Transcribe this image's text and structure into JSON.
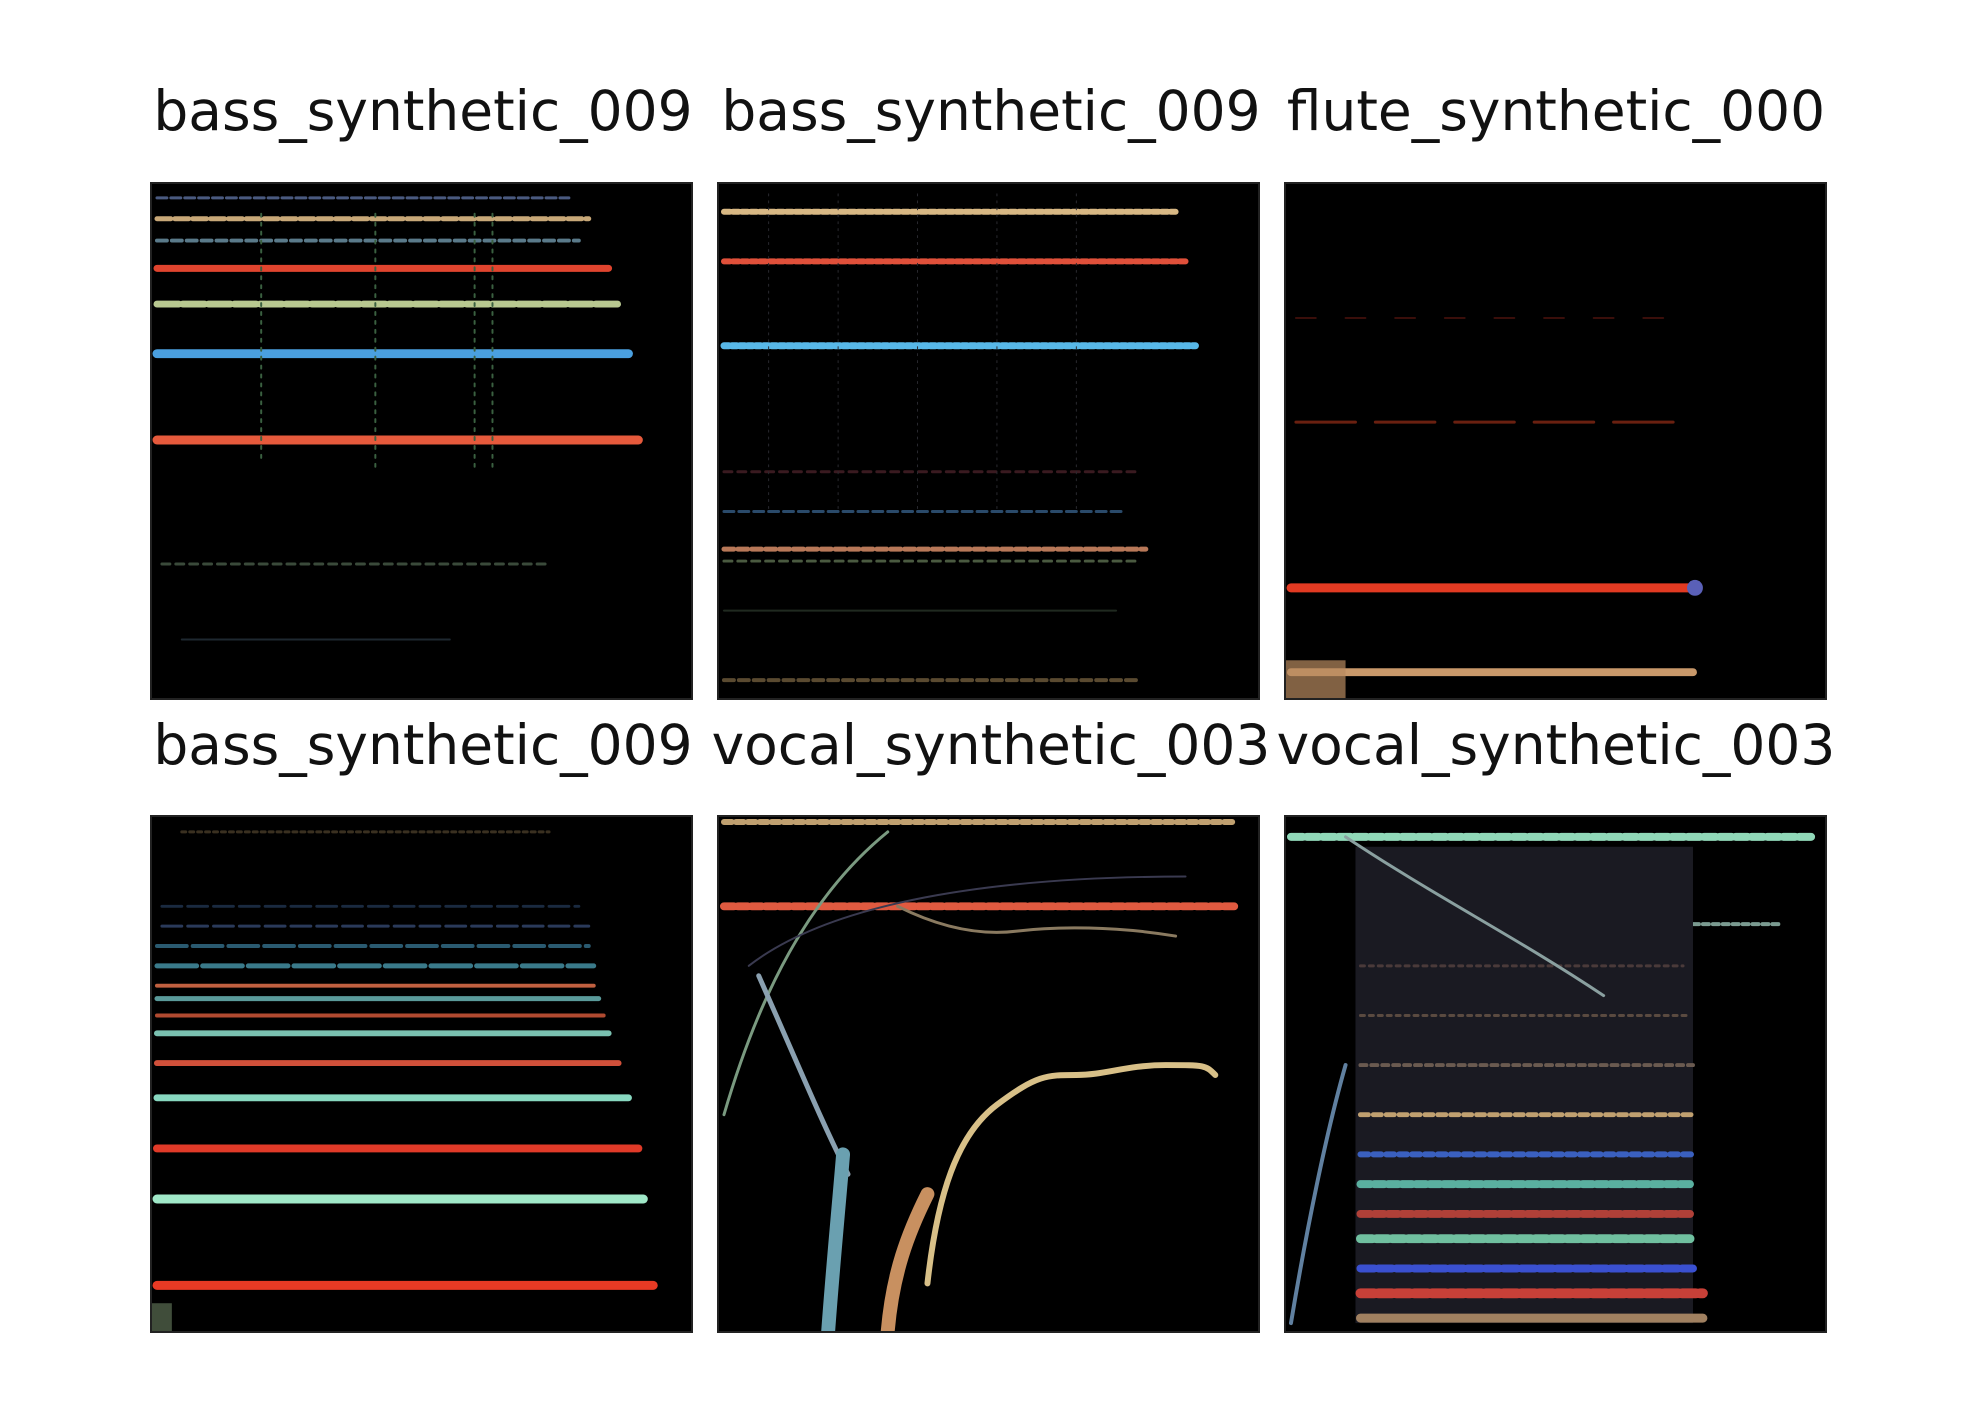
{
  "figure": {
    "panels": [
      {
        "title": "bass_synthetic_009"
      },
      {
        "title": "bass_synthetic_009"
      },
      {
        "title": "flute_synthetic_000"
      },
      {
        "title": "bass_synthetic_009"
      },
      {
        "title": "vocal_synthetic_003"
      },
      {
        "title": "vocal_synthetic_003"
      }
    ]
  }
}
